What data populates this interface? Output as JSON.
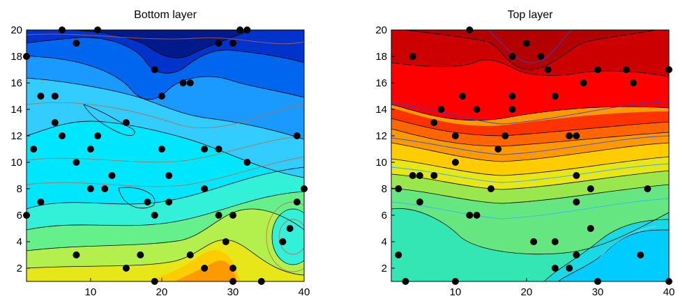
{
  "chart_data": [
    {
      "type": "contour",
      "title": "Bottom layer",
      "xlabel": "",
      "ylabel": "",
      "xlim": [
        1,
        40
      ],
      "ylim": [
        1,
        20
      ],
      "xticks": [
        10,
        20,
        30,
        40
      ],
      "yticks": [
        2,
        4,
        6,
        8,
        10,
        12,
        14,
        16,
        18,
        20
      ],
      "colormap": "jet",
      "color_range": "deep blue (top) to orange (bottom)",
      "colors": [
        "#001a8c",
        "#0033cc",
        "#0066ee",
        "#1a99ff",
        "#33ccff",
        "#00e6ff",
        "#33f0d9",
        "#66f08c",
        "#b3f04d",
        "#e6e619",
        "#ffcc00",
        "#ff9900"
      ],
      "overlay_lines": "orange/red thin contour lines",
      "points": [
        [
          1,
          18
        ],
        [
          1,
          6
        ],
        [
          2,
          11
        ],
        [
          3,
          15
        ],
        [
          3,
          7
        ],
        [
          5,
          15
        ],
        [
          5,
          13
        ],
        [
          6,
          20
        ],
        [
          6,
          12
        ],
        [
          8,
          19
        ],
        [
          8,
          10
        ],
        [
          8,
          3
        ],
        [
          10,
          11
        ],
        [
          10,
          8
        ],
        [
          11,
          20
        ],
        [
          11,
          12
        ],
        [
          12,
          8
        ],
        [
          13,
          9
        ],
        [
          15,
          13
        ],
        [
          15,
          2
        ],
        [
          17,
          3
        ],
        [
          18,
          7
        ],
        [
          19,
          17
        ],
        [
          19,
          6
        ],
        [
          19,
          1
        ],
        [
          20,
          15
        ],
        [
          20,
          11
        ],
        [
          21,
          9
        ],
        [
          21,
          7
        ],
        [
          23,
          16
        ],
        [
          24,
          16
        ],
        [
          24,
          3
        ],
        [
          26,
          11
        ],
        [
          26,
          8
        ],
        [
          26,
          2
        ],
        [
          28,
          19
        ],
        [
          28,
          11
        ],
        [
          28,
          6
        ],
        [
          29,
          4
        ],
        [
          30,
          19
        ],
        [
          30,
          6
        ],
        [
          30,
          2
        ],
        [
          30,
          1
        ],
        [
          31,
          20
        ],
        [
          32,
          20
        ],
        [
          32,
          10
        ],
        [
          34,
          1
        ],
        [
          37,
          4
        ],
        [
          38,
          5
        ],
        [
          39,
          12
        ],
        [
          39,
          7
        ],
        [
          40,
          8
        ]
      ]
    },
    {
      "type": "contour",
      "title": "Top layer",
      "xlabel": "",
      "ylabel": "",
      "xlim": [
        1,
        40
      ],
      "ylim": [
        1,
        20
      ],
      "xticks": [
        10,
        20,
        30,
        40
      ],
      "yticks": [
        2,
        4,
        6,
        8,
        10,
        12,
        14,
        16,
        18,
        20
      ],
      "colormap": "jet",
      "color_range": "dark red (top) to cyan (bottom)",
      "colors": [
        "#b30000",
        "#cc0000",
        "#ff0000",
        "#ff3300",
        "#ff6600",
        "#ff9900",
        "#ffcc00",
        "#e6e619",
        "#99e64d",
        "#66e680",
        "#33e6b3",
        "#1ad9e6",
        "#00ccff"
      ],
      "overlay_lines": "blue/cyan thin contour lines",
      "points": [
        [
          2,
          8
        ],
        [
          2,
          3
        ],
        [
          3,
          1
        ],
        [
          4,
          18
        ],
        [
          4,
          9
        ],
        [
          5,
          9
        ],
        [
          5,
          7
        ],
        [
          7,
          13
        ],
        [
          7,
          9
        ],
        [
          8,
          14
        ],
        [
          10,
          12
        ],
        [
          10,
          10
        ],
        [
          10,
          1
        ],
        [
          11,
          15
        ],
        [
          12,
          20
        ],
        [
          12,
          6
        ],
        [
          13,
          14
        ],
        [
          13,
          6
        ],
        [
          15,
          8
        ],
        [
          16,
          11
        ],
        [
          17,
          12
        ],
        [
          18,
          18
        ],
        [
          18,
          15
        ],
        [
          18,
          14
        ],
        [
          20,
          19
        ],
        [
          21,
          4
        ],
        [
          22,
          18
        ],
        [
          23,
          17
        ],
        [
          24,
          15
        ],
        [
          24,
          4
        ],
        [
          24,
          2
        ],
        [
          26,
          12
        ],
        [
          26,
          2
        ],
        [
          27,
          12
        ],
        [
          27,
          9
        ],
        [
          27,
          7
        ],
        [
          27,
          3
        ],
        [
          28,
          16
        ],
        [
          29,
          8
        ],
        [
          29,
          5
        ],
        [
          30,
          17
        ],
        [
          30,
          1
        ],
        [
          34,
          17
        ],
        [
          35,
          16
        ],
        [
          36,
          3
        ],
        [
          37,
          8
        ],
        [
          40,
          17
        ],
        [
          40,
          1
        ]
      ]
    }
  ]
}
